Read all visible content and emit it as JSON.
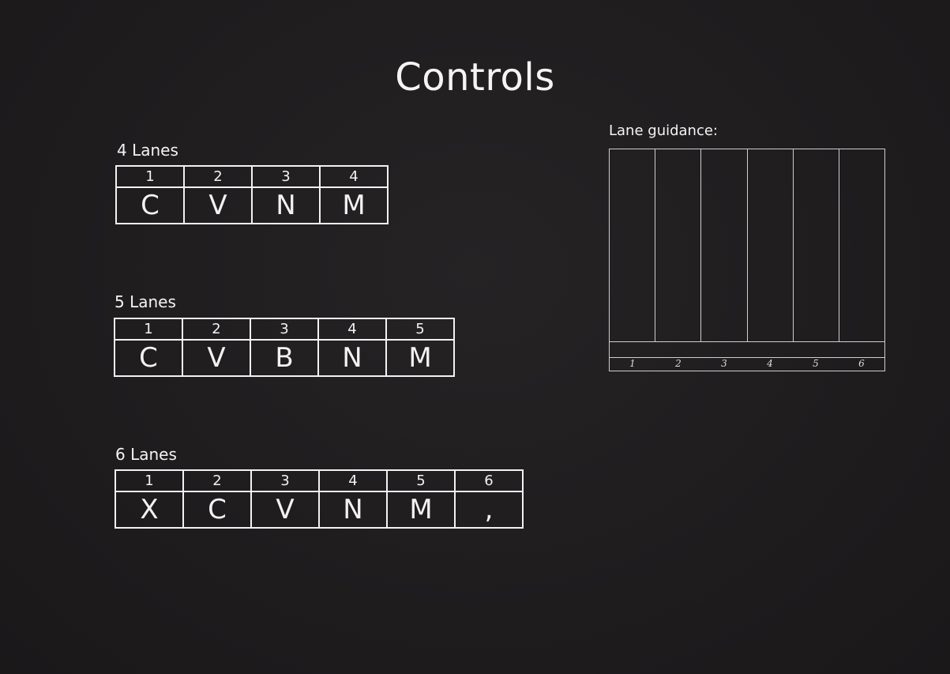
{
  "title": "Controls",
  "layouts": [
    {
      "label": "4 Lanes",
      "numbers": [
        "1",
        "2",
        "3",
        "4"
      ],
      "keys": [
        "C",
        "V",
        "N",
        "M"
      ]
    },
    {
      "label": "5 Lanes",
      "numbers": [
        "1",
        "2",
        "3",
        "4",
        "5"
      ],
      "keys": [
        "C",
        "V",
        "B",
        "N",
        "M"
      ]
    },
    {
      "label": "6 Lanes",
      "numbers": [
        "1",
        "2",
        "3",
        "4",
        "5",
        "6"
      ],
      "keys": [
        "X",
        "C",
        "V",
        "N",
        "M",
        ","
      ]
    }
  ],
  "guidance": {
    "label": "Lane guidance:",
    "numbers": [
      "1",
      "2",
      "3",
      "4",
      "5",
      "6"
    ]
  }
}
